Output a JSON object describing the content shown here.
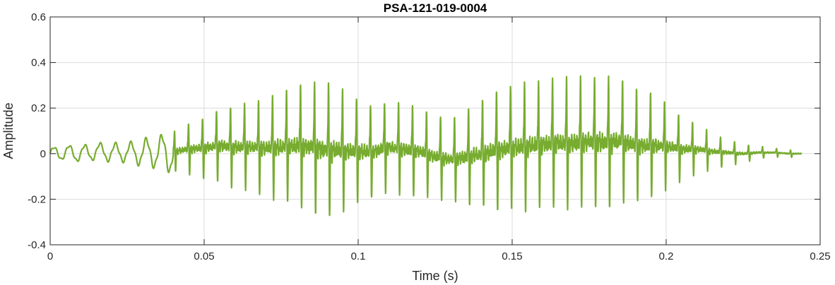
{
  "chart_data": {
    "type": "line",
    "title": "PSA-121-019-0004",
    "xlabel": "Time (s)",
    "ylabel": "Amplitude",
    "xlim": [
      0,
      0.25
    ],
    "ylim": [
      -0.4,
      0.6
    ],
    "xticks": [
      0,
      0.05,
      0.1,
      0.15,
      0.2,
      0.25
    ],
    "xtick_labels": [
      "0",
      "0.05",
      "0.1",
      "0.15",
      "0.2",
      "0.25"
    ],
    "yticks": [
      -0.4,
      -0.2,
      0,
      0.2,
      0.4,
      0.6
    ],
    "ytick_labels": [
      "-0.4",
      "-0.2",
      "0",
      "0.2",
      "0.4",
      "0.6"
    ],
    "grid": true,
    "line_color": "#77ac30",
    "series": [
      {
        "x": [
          0,
          0.005,
          0.01,
          0.015,
          0.02,
          0.025,
          0.03,
          0.035,
          0.04,
          0.045,
          0.05,
          0.055,
          0.06,
          0.065,
          0.07,
          0.075,
          0.08,
          0.085,
          0.09,
          0.095,
          0.1,
          0.105,
          0.11,
          0.115,
          0.12,
          0.125,
          0.13,
          0.135,
          0.14,
          0.145,
          0.15,
          0.155,
          0.16,
          0.165,
          0.17,
          0.175,
          0.18,
          0.185,
          0.19,
          0.195,
          0.2,
          0.205,
          0.21,
          0.215,
          0.22,
          0.225,
          0.23,
          0.235,
          0.24,
          0.244
        ],
        "upper": [
          0.03,
          0.04,
          0.04,
          0.05,
          0.05,
          0.05,
          0.07,
          0.08,
          0.12,
          0.16,
          0.2,
          0.24,
          0.26,
          0.28,
          0.3,
          0.33,
          0.37,
          0.39,
          0.4,
          0.36,
          0.3,
          0.27,
          0.28,
          0.28,
          0.26,
          0.22,
          0.2,
          0.25,
          0.3,
          0.35,
          0.38,
          0.39,
          0.4,
          0.41,
          0.41,
          0.42,
          0.42,
          0.41,
          0.36,
          0.33,
          0.28,
          0.2,
          0.16,
          0.11,
          0.08,
          0.05,
          0.04,
          0.03,
          0.02,
          0.02
        ],
        "lower": [
          -0.03,
          -0.03,
          -0.04,
          -0.03,
          -0.04,
          -0.04,
          -0.06,
          -0.07,
          -0.1,
          -0.12,
          -0.15,
          -0.17,
          -0.2,
          -0.22,
          -0.25,
          -0.27,
          -0.3,
          -0.33,
          -0.37,
          -0.33,
          -0.28,
          -0.25,
          -0.22,
          -0.24,
          -0.24,
          -0.25,
          -0.25,
          -0.28,
          -0.3,
          -0.32,
          -0.32,
          -0.33,
          -0.32,
          -0.31,
          -0.32,
          -0.31,
          -0.32,
          -0.3,
          -0.28,
          -0.26,
          -0.21,
          -0.16,
          -0.12,
          -0.09,
          -0.07,
          -0.05,
          -0.03,
          -0.02,
          -0.02,
          -0.02
        ]
      }
    ]
  }
}
